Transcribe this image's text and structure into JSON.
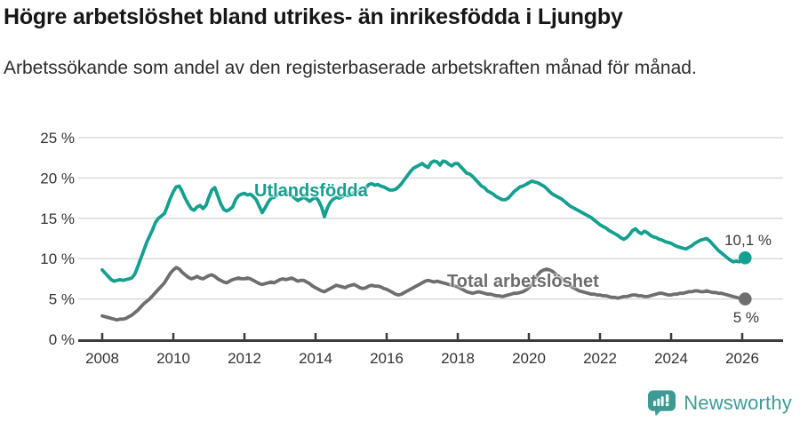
{
  "header": {
    "title": "Högre arbetslöshet bland utrikes- än inrikesfödda i Ljungby",
    "subtitle": "Arbetssökande som andel av den registerbaserade arbetskraften månad för månad."
  },
  "chart_data": {
    "type": "line",
    "title": "Högre arbetslöshet bland utrikes- än inrikesfödda i Ljungby",
    "xlabel": "",
    "ylabel": "",
    "grid": true,
    "legend": "inline-labels",
    "x_axis": {
      "ticks": [
        2008,
        2010,
        2012,
        2014,
        2016,
        2018,
        2020,
        2022,
        2024,
        2026
      ],
      "range": [
        2007.4,
        2027.2
      ]
    },
    "y_axis": {
      "ticks": [
        {
          "value": 0,
          "label": "0 %"
        },
        {
          "value": 5,
          "label": "5 %"
        },
        {
          "value": 10,
          "label": "10 %"
        },
        {
          "value": 15,
          "label": "15 %"
        },
        {
          "value": 20,
          "label": "20 %"
        },
        {
          "value": 25,
          "label": "25 %"
        }
      ],
      "range": [
        0,
        25
      ]
    },
    "style": {
      "grid_color": "#dadada",
      "axis_color": "#3c3c3c",
      "tick_text_color": "#333333",
      "background": "#ffffff"
    },
    "series": [
      {
        "id": "utlandsfodda",
        "name": "Utlandsfödda",
        "color": "#14A090",
        "end_label": "10,1 %",
        "end_value": 10.1,
        "start_year": 2008,
        "interval_months": 1,
        "values": [
          8.6,
          8.2,
          7.8,
          7.4,
          7.2,
          7.3,
          7.4,
          7.3,
          7.4,
          7.5,
          7.6,
          8.1,
          9.0,
          10.0,
          11.0,
          12.0,
          12.8,
          13.6,
          14.5,
          15.0,
          15.3,
          15.6,
          16.5,
          17.5,
          18.3,
          18.9,
          19.0,
          18.3,
          17.5,
          16.8,
          16.2,
          16.0,
          16.4,
          16.6,
          16.2,
          16.6,
          17.6,
          18.5,
          18.8,
          17.8,
          16.8,
          16.1,
          15.9,
          16.1,
          16.4,
          17.3,
          17.8,
          18.0,
          18.1,
          17.9,
          18.0,
          17.7,
          17.3,
          16.5,
          15.7,
          16.3,
          17.0,
          17.5,
          17.6,
          17.9,
          18.2,
          18.4,
          18.3,
          18.0,
          17.8,
          17.5,
          17.2,
          17.4,
          17.6,
          17.4,
          17.1,
          17.4,
          17.6,
          17.2,
          16.4,
          15.2,
          16.3,
          17.0,
          17.4,
          17.6,
          17.5,
          17.7,
          17.9,
          17.8,
          18.0,
          18.2,
          18.3,
          18.4,
          18.6,
          18.8,
          19.2,
          19.3,
          19.1,
          19.2,
          19.0,
          18.9,
          18.7,
          18.5,
          18.5,
          18.6,
          18.9,
          19.3,
          19.8,
          20.3,
          20.8,
          21.2,
          21.4,
          21.6,
          21.8,
          21.5,
          21.3,
          21.9,
          22.1,
          22.0,
          21.6,
          22.1,
          22.0,
          21.7,
          21.5,
          21.8,
          21.8,
          21.4,
          21.0,
          20.6,
          20.5,
          20.2,
          19.8,
          19.4,
          19.0,
          18.8,
          18.4,
          18.2,
          18.0,
          17.7,
          17.5,
          17.3,
          17.3,
          17.5,
          17.9,
          18.3,
          18.6,
          18.9,
          19.0,
          19.2,
          19.4,
          19.6,
          19.5,
          19.4,
          19.2,
          19.0,
          18.7,
          18.3,
          18.0,
          17.8,
          17.6,
          17.4,
          17.1,
          16.8,
          16.5,
          16.3,
          16.1,
          15.9,
          15.7,
          15.5,
          15.3,
          15.1,
          14.8,
          14.5,
          14.2,
          14.0,
          13.8,
          13.5,
          13.3,
          13.1,
          12.9,
          12.6,
          12.4,
          12.6,
          13.0,
          13.5,
          13.7,
          13.3,
          13.1,
          13.4,
          13.2,
          12.9,
          12.7,
          12.6,
          12.4,
          12.3,
          12.1,
          12.0,
          11.9,
          11.7,
          11.5,
          11.4,
          11.3,
          11.2,
          11.4,
          11.6,
          11.9,
          12.1,
          12.3,
          12.4,
          12.5,
          12.2,
          11.8,
          11.4,
          11.0,
          10.7,
          10.4,
          10.1,
          9.8,
          9.6,
          9.7,
          9.6,
          9.8,
          10.1
        ]
      },
      {
        "id": "total",
        "name": "Total arbetslöshet",
        "color": "#6E6E6E",
        "end_label": "5 %",
        "end_value": 5.0,
        "start_year": 2008,
        "interval_months": 1,
        "values": [
          2.9,
          2.8,
          2.7,
          2.6,
          2.5,
          2.4,
          2.5,
          2.5,
          2.6,
          2.8,
          3.0,
          3.3,
          3.6,
          4.0,
          4.4,
          4.7,
          5.0,
          5.4,
          5.8,
          6.2,
          6.6,
          7.0,
          7.6,
          8.2,
          8.6,
          8.9,
          8.7,
          8.3,
          8.0,
          7.7,
          7.5,
          7.6,
          7.8,
          7.6,
          7.5,
          7.7,
          7.9,
          8.0,
          7.8,
          7.5,
          7.3,
          7.1,
          7.0,
          7.2,
          7.4,
          7.5,
          7.6,
          7.5,
          7.5,
          7.6,
          7.5,
          7.3,
          7.1,
          6.9,
          6.8,
          6.9,
          7.0,
          7.1,
          7.0,
          7.2,
          7.4,
          7.5,
          7.4,
          7.5,
          7.6,
          7.4,
          7.2,
          7.3,
          7.3,
          7.1,
          6.9,
          6.6,
          6.4,
          6.2,
          6.0,
          5.9,
          6.1,
          6.3,
          6.5,
          6.7,
          6.6,
          6.5,
          6.4,
          6.6,
          6.7,
          6.8,
          6.6,
          6.4,
          6.3,
          6.4,
          6.6,
          6.7,
          6.6,
          6.6,
          6.5,
          6.3,
          6.2,
          6.0,
          5.8,
          5.6,
          5.5,
          5.6,
          5.8,
          6.0,
          6.2,
          6.4,
          6.6,
          6.8,
          7.0,
          7.2,
          7.3,
          7.2,
          7.1,
          7.2,
          7.1,
          7.0,
          6.9,
          6.8,
          6.7,
          6.6,
          6.5,
          6.3,
          6.1,
          5.9,
          5.8,
          5.7,
          5.8,
          5.9,
          5.8,
          5.7,
          5.6,
          5.6,
          5.5,
          5.4,
          5.4,
          5.3,
          5.4,
          5.5,
          5.6,
          5.7,
          5.7,
          5.8,
          5.9,
          6.1,
          6.4,
          6.8,
          7.4,
          8.0,
          8.4,
          8.6,
          8.7,
          8.6,
          8.4,
          8.1,
          7.8,
          7.5,
          7.2,
          6.9,
          6.6,
          6.4,
          6.2,
          6.0,
          5.9,
          5.8,
          5.7,
          5.6,
          5.6,
          5.5,
          5.5,
          5.4,
          5.4,
          5.3,
          5.2,
          5.2,
          5.1,
          5.2,
          5.3,
          5.3,
          5.4,
          5.5,
          5.5,
          5.4,
          5.4,
          5.3,
          5.3,
          5.4,
          5.5,
          5.6,
          5.7,
          5.7,
          5.6,
          5.5,
          5.5,
          5.6,
          5.6,
          5.7,
          5.7,
          5.8,
          5.9,
          5.9,
          6.0,
          6.0,
          5.9,
          5.9,
          6.0,
          5.9,
          5.8,
          5.8,
          5.7,
          5.7,
          5.6,
          5.5,
          5.4,
          5.3,
          5.2,
          5.1,
          5.0,
          5.0
        ]
      }
    ]
  },
  "footer": {
    "brand": "Newsworthy",
    "brand_color": "#3E9B94",
    "logo_icon": "bar-chart-speech-bubble-icon"
  }
}
